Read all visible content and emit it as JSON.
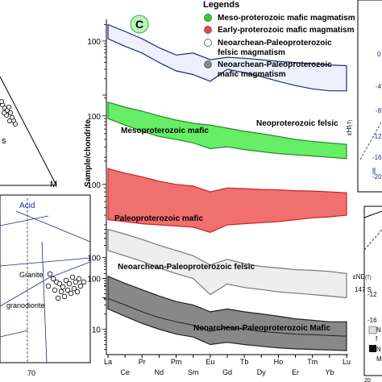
{
  "panel_label": "C",
  "legend": {
    "title": "Legends",
    "items": [
      {
        "label": "Meso-proterozoic mafic magmatism",
        "color": "#33cc33",
        "shape": "circle"
      },
      {
        "label": "Early-proterozoic mafic magmatism",
        "color": "#ee4444",
        "shape": "circle"
      },
      {
        "label": "Neoarchean-Paleoproterozoic",
        "label2": "felsic magmatism",
        "color": "#ffffff",
        "shape": "circle"
      },
      {
        "label": "Neoarchean-Paleoproterozoic",
        "label2": "mafic magmatism",
        "color": "#888888",
        "shape": "circle"
      }
    ]
  },
  "chart_data": {
    "type": "area",
    "ylabel": "Sample/chondrite",
    "yscale": "log",
    "x_top_labels": [
      "La",
      "Pr",
      "Pm",
      "Eu",
      "Tb",
      "Ho",
      "Tm",
      "Lu"
    ],
    "x_bottom_labels": [
      "Ce",
      "Nd",
      "Sm",
      "Gd",
      "Dy",
      "Er",
      "Yb"
    ],
    "elements": [
      "La",
      "Ce",
      "Pr",
      "Nd",
      "Pm",
      "Sm",
      "Eu",
      "Gd",
      "Tb",
      "Dy",
      "Ho",
      "Er",
      "Tm",
      "Yb",
      "Lu"
    ],
    "panels": [
      {
        "name": "Neoproterozoic felsic",
        "label": "Neoproterozoic felsic",
        "fill": "#eef0fb",
        "stroke": "#1f2a8c",
        "ytick": "100",
        "upper": [
          200,
          150,
          110,
          75,
          55,
          60,
          45,
          50,
          48,
          45,
          42,
          40,
          38,
          36,
          35
        ],
        "lower": [
          110,
          80,
          60,
          40,
          28,
          24,
          18,
          30,
          26,
          22,
          18,
          15,
          13,
          12,
          12
        ]
      },
      {
        "name": "Mesoproterozoic mafic",
        "label": "Mesoproterozoic mafic",
        "fill": "#66ee66",
        "stroke": "#228822",
        "ytick": "100",
        "upper": [
          170,
          140,
          120,
          100,
          85,
          75,
          70,
          62,
          55,
          50,
          45,
          40,
          37,
          35,
          33
        ],
        "lower": [
          90,
          70,
          55,
          45,
          40,
          35,
          28,
          30,
          27,
          25,
          23,
          22,
          21,
          20,
          19
        ]
      },
      {
        "name": "Paleoproterozoic mafic",
        "label": "Paleoproterozoic mafic",
        "fill": "#f07070",
        "stroke": "#cc2222",
        "ytick": "100",
        "upper": [
          160,
          140,
          125,
          110,
          100,
          95,
          80,
          90,
          88,
          86,
          85,
          83,
          82,
          80,
          78
        ],
        "lower": [
          35,
          33,
          31,
          30,
          29,
          28,
          24,
          30,
          31,
          32,
          33,
          35,
          37,
          38,
          40
        ]
      },
      {
        "name": "Neoarchean-Paleoproterozoic felsic",
        "label": "Neoarchean-Paleoproterozoic felsic",
        "fill": "#eeeeee",
        "stroke": "#777777",
        "ytick": "100",
        "upper": [
          500,
          380,
          280,
          200,
          150,
          110,
          65,
          90,
          70,
          60,
          55,
          50,
          48,
          45,
          40
        ],
        "lower": [
          150,
          110,
          80,
          55,
          40,
          30,
          12,
          22,
          18,
          16,
          14,
          13,
          12,
          11,
          10
        ]
      },
      {
        "name": "Neoarchean-Paleoproterozoic Mafic",
        "label": "Neoarchean-Paleoproterozoic Mafic",
        "fill": "#888888",
        "stroke": "#222222",
        "ytick_top": "100",
        "ytick_bottom": "10",
        "upper": [
          110,
          80,
          60,
          45,
          35,
          30,
          22,
          25,
          22,
          20,
          18,
          16,
          15,
          14,
          14
        ],
        "lower": [
          25,
          18,
          13,
          10,
          8,
          7,
          5,
          5.5,
          5,
          4.6,
          4.3,
          4.1,
          4,
          3.9,
          3.8
        ],
        "inner_line": [
          40,
          30,
          22,
          17,
          14,
          12,
          9,
          11,
          10,
          9,
          8.5,
          8,
          7.8,
          7.5,
          7.3
        ]
      }
    ]
  },
  "left_panels": {
    "ternary_label_s": "s",
    "ternary_vertex_m": "M",
    "lower_title": "Acid",
    "granite_label": "Granite",
    "granodiorite_label": "granodiorite",
    "xtick": "70"
  },
  "right_panels": {
    "ehf_label": "εHf",
    "ehf_sub": "(T)",
    "tick_0": "0",
    "tick_m4": "-4",
    "tick_m8": "-8",
    "tick_m12": "-12",
    "tick_m16": "-16",
    "tick_m20": "-20",
    "end_label": "εND",
    "end_sub": "(T)",
    "sm_label": "147 S",
    "bottom_tick": "20",
    "legend_n1": "N",
    "legend_f": "f",
    "legend_n2": "N",
    "legend_m": "M"
  }
}
